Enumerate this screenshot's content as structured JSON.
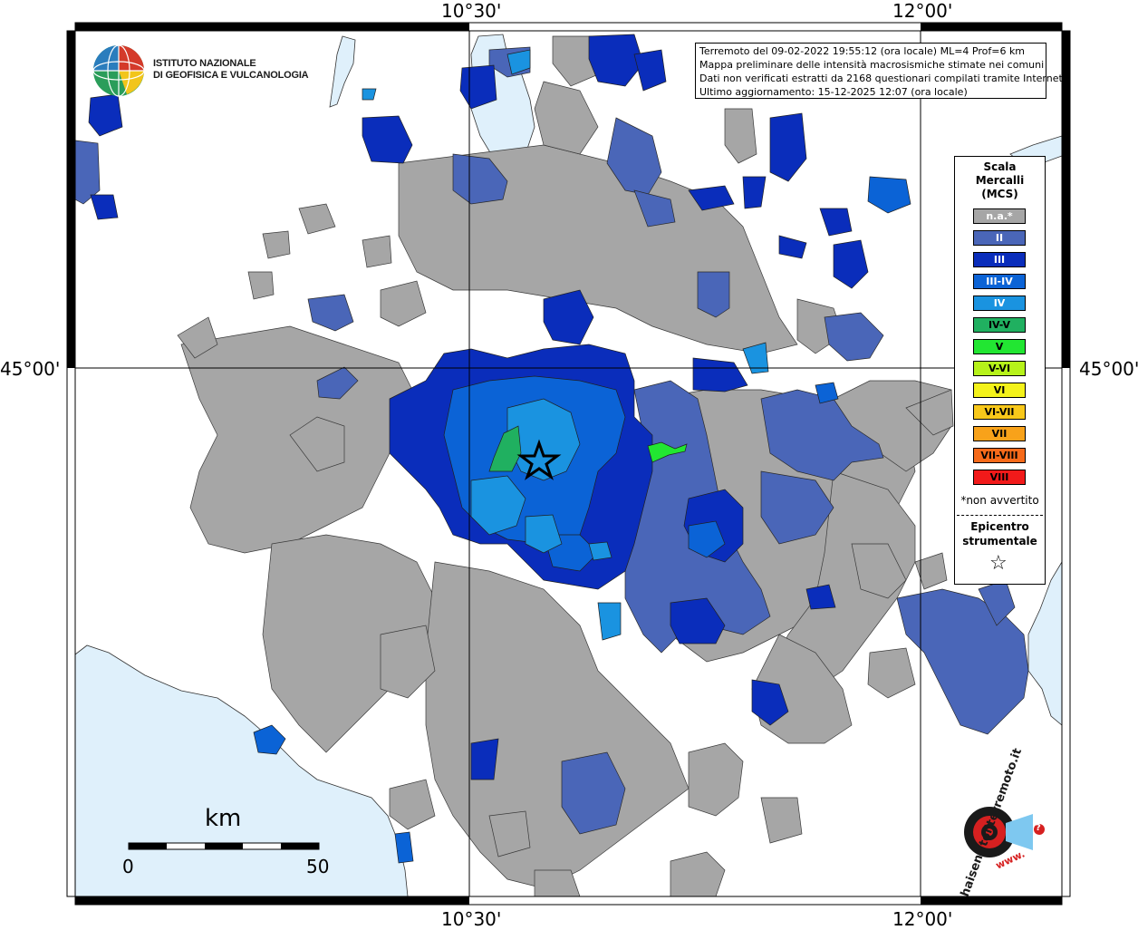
{
  "map": {
    "grid_labels": {
      "top": [
        "10°30'",
        "12°00'"
      ],
      "bottom": [
        "10°30'",
        "12°00'"
      ],
      "left": [
        "45°00'"
      ],
      "right": [
        "45°00'"
      ]
    },
    "colors": {
      "sea": "#dff0fb",
      "na": "#a6a6a6",
      "II": "#4a66b8",
      "III": "#0a2dbb",
      "III-IV": "#0b63d6",
      "IV": "#1a93e0",
      "IV-V": "#20b060",
      "V": "#22e632",
      "border": "#333333"
    }
  },
  "header": {
    "org_line1": "ISTITUTO NAZIONALE",
    "org_line2": "DI GEOFISICA E VULCANOLOGIA"
  },
  "info": {
    "line1": "Terremoto del 09-02-2022 19:55:12 (ora locale) ML=4 Prof=6 km",
    "line2": "Mappa preliminare delle intensità macrosismiche stimate nei comuni",
    "line3": "Dati non verificati estratti da 2168 questionari compilati tramite Internet.",
    "line4": "Ultimo aggiornamento: 15-12-2025 12:07 (ora locale)"
  },
  "legend": {
    "title_line1": "Scala",
    "title_line2": "Mercalli",
    "title_line3": "(MCS)",
    "items": [
      {
        "label": "n.a.*",
        "color": "#a6a6a6"
      },
      {
        "label": "II",
        "color": "#4a66b8"
      },
      {
        "label": "III",
        "color": "#0a2dbb"
      },
      {
        "label": "III-IV",
        "color": "#0b63d6"
      },
      {
        "label": "IV",
        "color": "#1a93e0"
      },
      {
        "label": "IV-V",
        "color": "#20b060"
      },
      {
        "label": "V",
        "color": "#22e632"
      },
      {
        "label": "V-VI",
        "color": "#b6f21a"
      },
      {
        "label": "VI",
        "color": "#f4f21a"
      },
      {
        "label": "VI-VII",
        "color": "#f8c81a"
      },
      {
        "label": "VII",
        "color": "#f8a21a"
      },
      {
        "label": "VII-VIII",
        "color": "#f66a1a"
      },
      {
        "label": "VIII",
        "color": "#f21a1a"
      }
    ],
    "note": "*non avvertito",
    "epicenter_line1": "Epicentro",
    "epicenter_line2": "strumentale"
  },
  "scale_bar": {
    "unit": "km",
    "min": "0",
    "max": "50"
  },
  "logo_site": {
    "text": "haisentitoilterremoto.it",
    "www": "www.",
    "question": "?"
  }
}
